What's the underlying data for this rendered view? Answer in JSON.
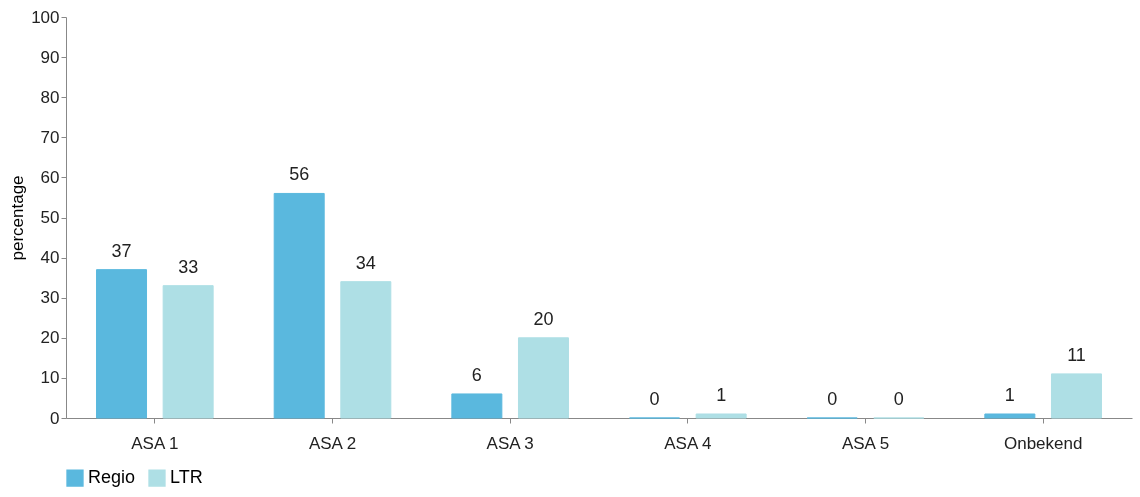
{
  "chart_data": {
    "type": "bar",
    "ylabel": "percentage",
    "categories": [
      "ASA 1",
      "ASA 2",
      "ASA 3",
      "ASA 4",
      "ASA 5",
      "Onbekend"
    ],
    "series": [
      {
        "name": "Regio",
        "color": "#5ab8de",
        "values": [
          37,
          56,
          6,
          0,
          0,
          1
        ]
      },
      {
        "name": "LTR",
        "color": "#aedfe5",
        "values": [
          33,
          34,
          20,
          1,
          0,
          11
        ]
      }
    ],
    "ylim": [
      0,
      100
    ],
    "yticks": [
      0,
      10,
      20,
      30,
      40,
      50,
      60,
      70,
      80,
      90,
      100
    ],
    "grid": false,
    "legend": "bottom",
    "data_labels": true
  }
}
